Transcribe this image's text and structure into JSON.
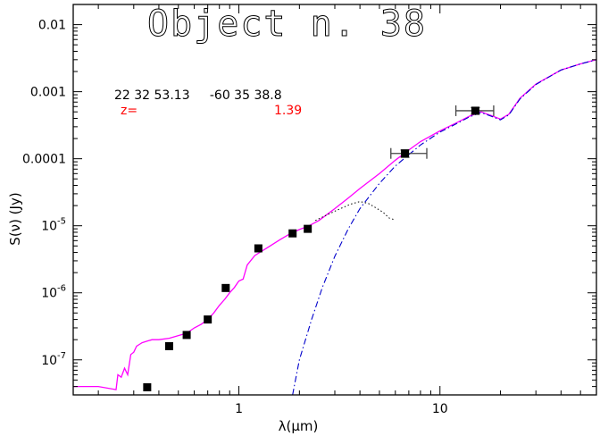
{
  "chart_data": {
    "type": "scatter",
    "title": "Object n. 38",
    "xlabel": "λ(μm)",
    "ylabel": "S(ν) (Jy)",
    "x_scale": "log",
    "y_scale": "log",
    "xlim": [
      0.15,
      60
    ],
    "ylim": [
      3e-08,
      0.02
    ],
    "x_ticks": [
      {
        "value": 1,
        "label": "1"
      },
      {
        "value": 10,
        "label": "10"
      }
    ],
    "y_ticks": [
      {
        "value": 0.01,
        "label": "0.01"
      },
      {
        "value": 0.001,
        "label": "0.001"
      },
      {
        "value": 0.0001,
        "label": "0.0001"
      },
      {
        "value": 1e-05,
        "label": "10",
        "exp": "-5"
      },
      {
        "value": 1e-06,
        "label": "10",
        "exp": "-6"
      },
      {
        "value": 1e-07,
        "label": "10",
        "exp": "-7"
      }
    ],
    "annotations": {
      "coordinates": "22 32 53.13     -60 35 38.8",
      "z_label": "z=",
      "z_value": "1.39",
      "z_color": "#ff0000"
    },
    "colors": {
      "model": "#ff00ff",
      "agn": "#0000cc",
      "galaxy": "#000000",
      "points": "#000000",
      "errorbars": "#444444"
    },
    "points": [
      {
        "x": 0.35,
        "y": 3.9e-08
      },
      {
        "x": 0.45,
        "y": 1.6e-07
      },
      {
        "x": 0.55,
        "y": 2.35e-07
      },
      {
        "x": 0.7,
        "y": 4e-07
      },
      {
        "x": 0.86,
        "y": 1.18e-06
      },
      {
        "x": 1.25,
        "y": 4.6e-06
      },
      {
        "x": 1.85,
        "y": 7.7e-06
      },
      {
        "x": 2.2,
        "y": 9e-06
      }
    ],
    "errorbar_points": [
      {
        "x": 6.7,
        "y": 0.00012,
        "xlo": 5.7,
        "xhi": 8.6,
        "ylo": 0.000105,
        "yhi": 0.000135
      },
      {
        "x": 15,
        "y": 0.00052,
        "xlo": 12,
        "xhi": 18.5,
        "ylo": 0.00046,
        "yhi": 0.00058
      }
    ],
    "series": [
      {
        "style": "solid",
        "x": [
          0.15,
          0.2,
          0.245,
          0.25,
          0.26,
          0.27,
          0.28,
          0.29,
          0.3,
          0.31,
          0.32,
          0.33,
          0.35,
          0.37,
          0.4,
          0.45,
          0.5,
          0.55,
          0.6,
          0.65,
          0.7,
          0.75,
          0.8,
          0.85,
          0.9,
          0.95,
          1.0,
          1.05,
          1.1,
          1.2,
          1.4,
          1.6,
          1.8,
          2.0,
          2.2,
          2.5,
          3.0,
          3.5,
          4.0,
          5.0,
          6.0,
          7.0,
          8.0,
          10.0,
          12.0,
          14.0,
          16.0,
          18.0,
          20.0,
          22.0,
          25.0,
          30.0,
          40.0,
          50.0,
          60.0
        ],
        "y": [
          4e-08,
          4e-08,
          3.6e-08,
          6e-08,
          5.5e-08,
          7.5e-08,
          6e-08,
          1.2e-07,
          1.3e-07,
          1.6e-07,
          1.7e-07,
          1.8e-07,
          1.9e-07,
          2e-07,
          2e-07,
          2.1e-07,
          2.3e-07,
          2.5e-07,
          3e-07,
          3.4e-07,
          4e-07,
          5e-07,
          6.5e-07,
          8e-07,
          1e-06,
          1.2e-06,
          1.5e-06,
          1.6e-06,
          2.6e-06,
          3.6e-06,
          4.8e-06,
          6.2e-06,
          7.6e-06,
          8.8e-06,
          9.8e-06,
          1.2e-05,
          1.8e-05,
          2.6e-05,
          3.6e-05,
          6e-05,
          9.5e-05,
          0.000135,
          0.00018,
          0.00026,
          0.00034,
          0.00043,
          0.0005,
          0.00044,
          0.00039,
          0.00046,
          0.0008,
          0.0013,
          0.0021,
          0.0026,
          0.003
        ]
      },
      {
        "style": "dashdot",
        "x": [
          1.85,
          2.0,
          2.3,
          2.6,
          3.0,
          3.5,
          4.0,
          5.0,
          6.0,
          7.0,
          8.0,
          10.0,
          12.0,
          14.0,
          16.0,
          18.0,
          20.0,
          22.0,
          25.0,
          30.0,
          40.0,
          50.0,
          60.0
        ],
        "y": [
          3e-08,
          1e-07,
          4e-07,
          1.2e-06,
          3.5e-06,
          9e-06,
          1.8e-05,
          4.3e-05,
          7.8e-05,
          0.000115,
          0.00016,
          0.00025,
          0.00033,
          0.00042,
          0.00049,
          0.00043,
          0.00038,
          0.00045,
          0.00078,
          0.00128,
          0.0021,
          0.0026,
          0.003
        ]
      },
      {
        "style": "dotted",
        "x": [
          2.4,
          2.8,
          3.2,
          3.6,
          4.0,
          4.4,
          4.8,
          5.2,
          5.6,
          6.0
        ],
        "y": [
          1.2e-05,
          1.5e-05,
          1.8e-05,
          2.1e-05,
          2.3e-05,
          2.15e-05,
          1.85e-05,
          1.6e-05,
          1.3e-05,
          1.22e-05
        ]
      }
    ]
  }
}
